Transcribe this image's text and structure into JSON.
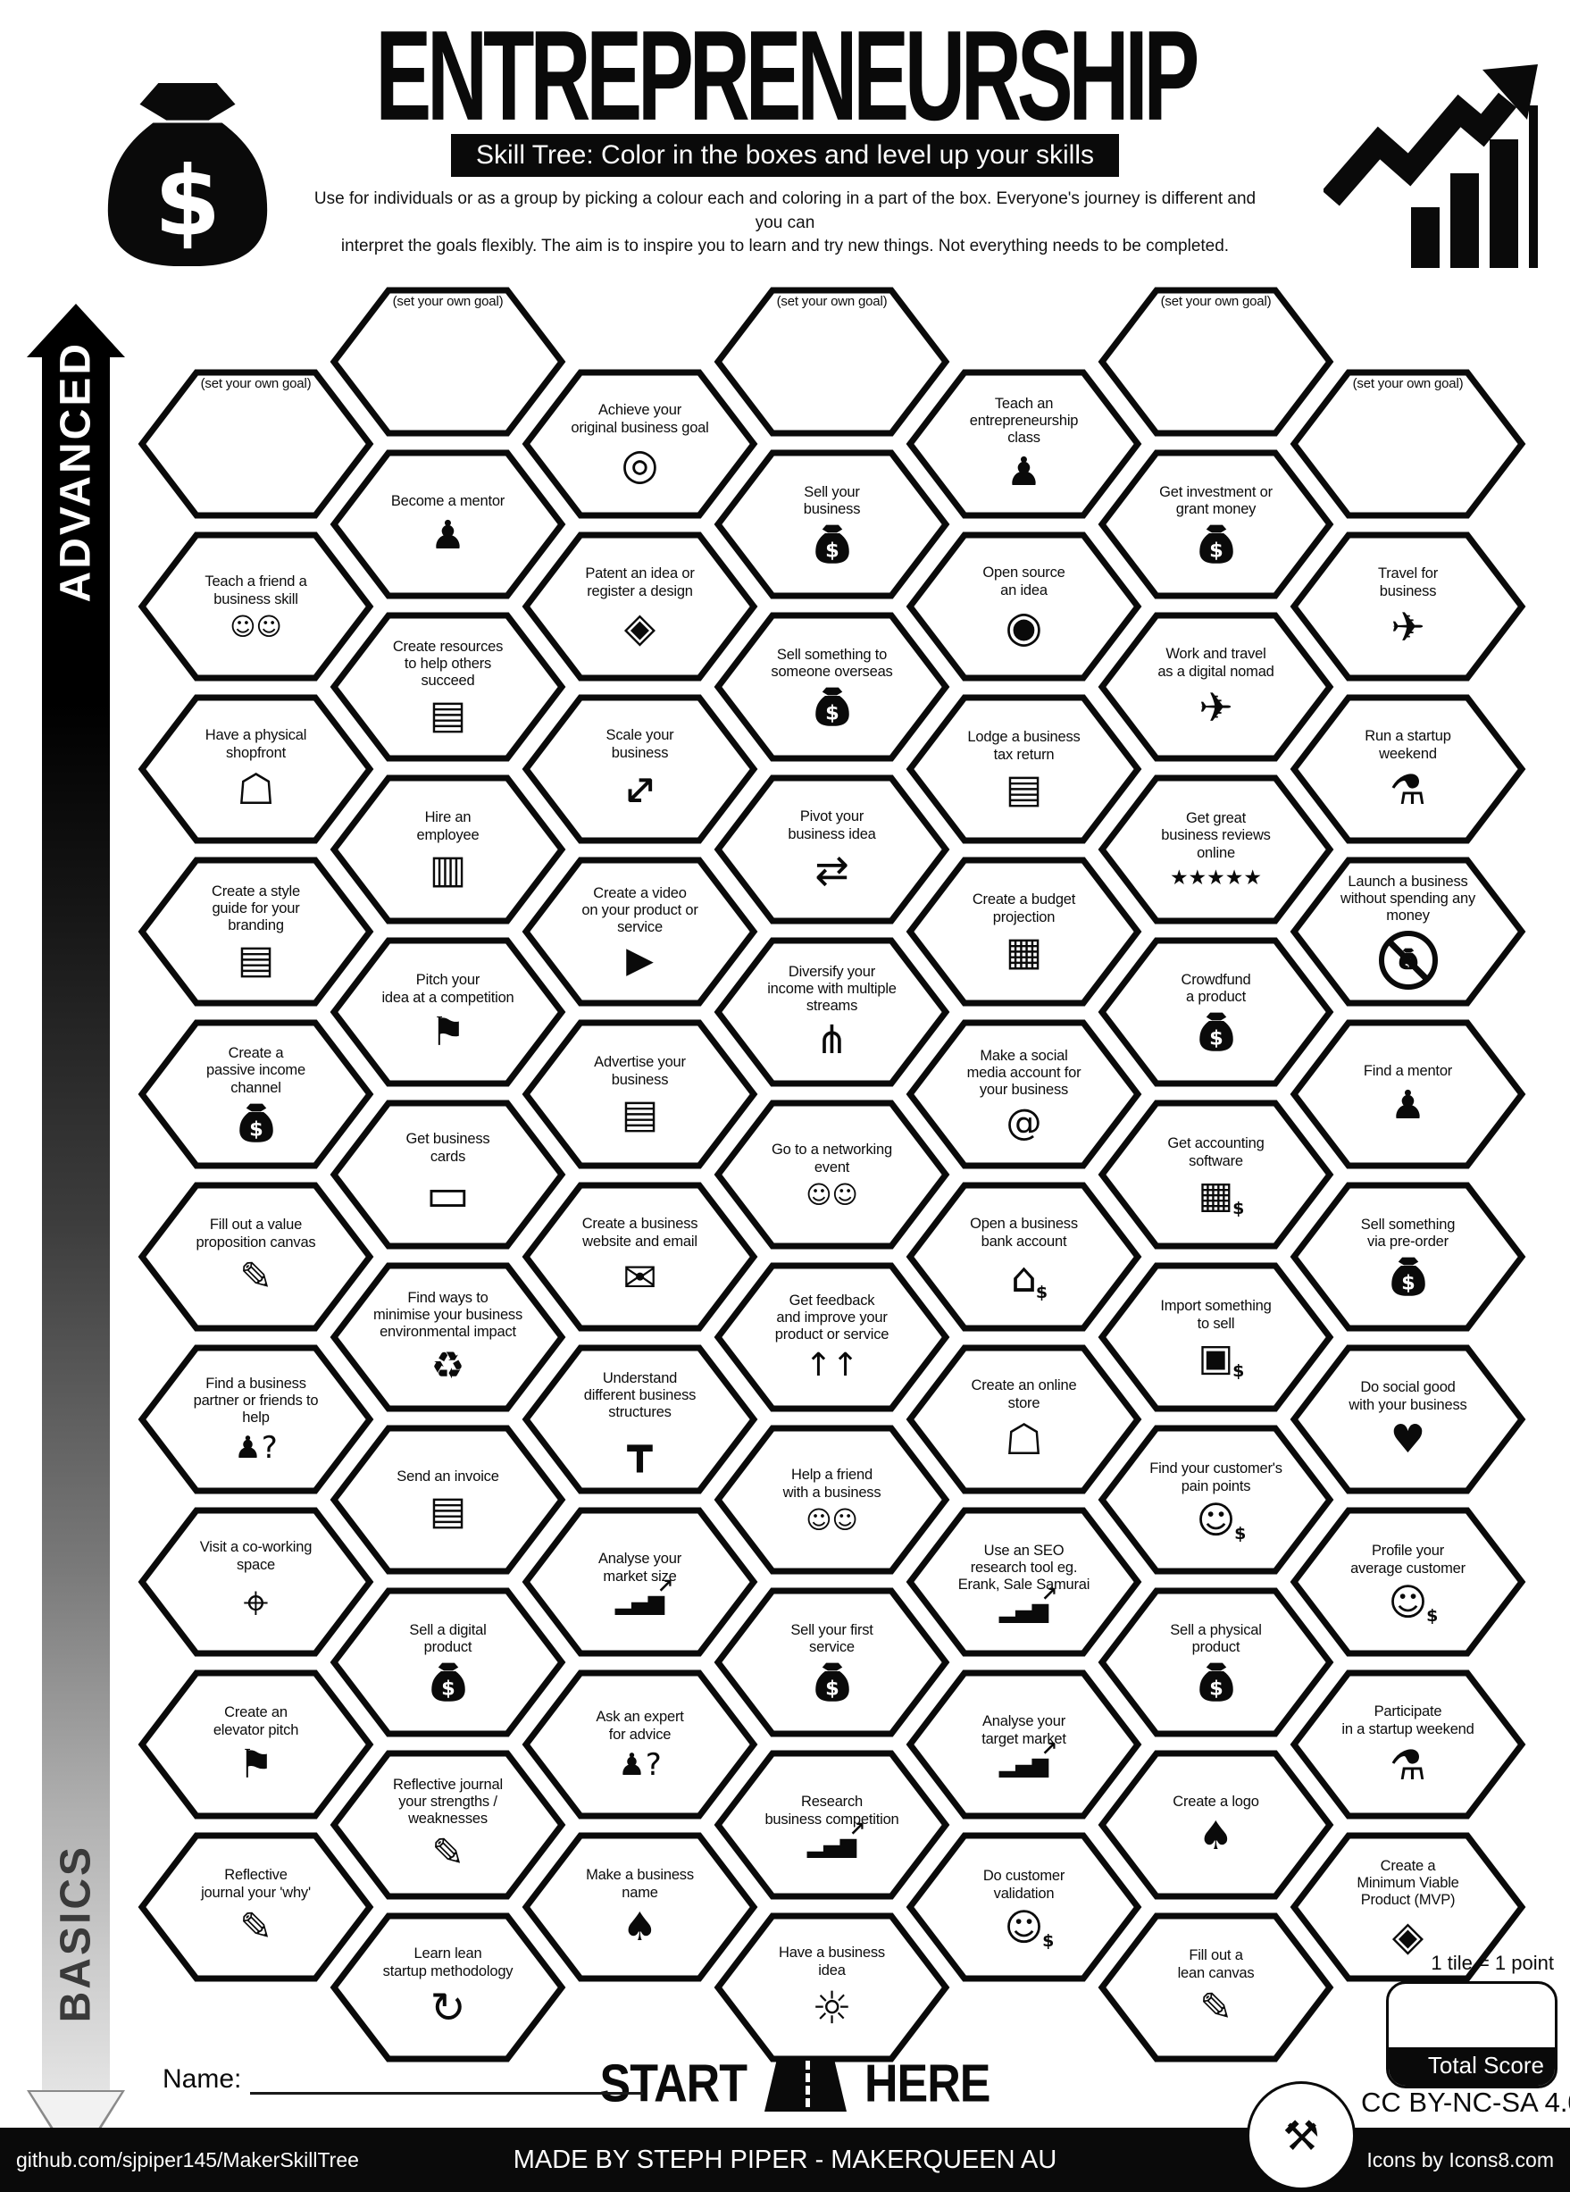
{
  "header": {
    "title": "ENTREPRENEURSHIP",
    "subtitle": "Skill Tree:  Color in the boxes and level up your skills",
    "description_line1": "Use for individuals or as a group by picking a colour each and coloring in a part of the box.  Everyone's journey is different and you can",
    "description_line2": "interpret the goals flexibly.  The aim is to inspire you to learn and try new things. Not everything needs to be completed.",
    "colors": {
      "ink": "#0a0a0a",
      "paper": "#ffffff"
    }
  },
  "axis": {
    "top_label": "ADVANCED",
    "bottom_label": "BASICS"
  },
  "grid": {
    "tiles": [
      {
        "col": 1,
        "row": 0,
        "label": "(set your own goal)",
        "icon": "goal"
      },
      {
        "col": 1,
        "row": 1,
        "label": "Teach a friend a\nbusiness skill",
        "icon": "two-people-laptop"
      },
      {
        "col": 1,
        "row": 2,
        "label": "Have a physical\nshopfront",
        "icon": "shopfront"
      },
      {
        "col": 1,
        "row": 3,
        "label": "Create a style\nguide for your\nbranding",
        "icon": "document"
      },
      {
        "col": 1,
        "row": 4,
        "label": "Create a\npassive income\nchannel",
        "icon": "money-bag"
      },
      {
        "col": 1,
        "row": 5,
        "label": "Fill out a value\nproposition canvas",
        "icon": "easel-canvas"
      },
      {
        "col": 1,
        "row": 6,
        "label": "Find a business\npartner or friends to\nhelp",
        "icon": "person-question"
      },
      {
        "col": 1,
        "row": 7,
        "label": "Visit a co-working\nspace",
        "icon": "location-pin"
      },
      {
        "col": 1,
        "row": 8,
        "label": "Create an\nelevator pitch",
        "icon": "lectern"
      },
      {
        "col": 1,
        "row": 9,
        "label": "Reflective\njournal your 'why'",
        "icon": "easel-canvas"
      },
      {
        "col": 2,
        "row": 0,
        "label": "(set your own goal)",
        "icon": "goal"
      },
      {
        "col": 2,
        "row": 1,
        "label": "Become a mentor",
        "icon": "presenter-whiteboard"
      },
      {
        "col": 2,
        "row": 2,
        "label": "Create resources\nto help others\nsucceed",
        "icon": "document"
      },
      {
        "col": 2,
        "row": 3,
        "label": "Hire an\nemployee",
        "icon": "id-badge"
      },
      {
        "col": 2,
        "row": 4,
        "label": "Pitch your\nidea at a competition",
        "icon": "lectern"
      },
      {
        "col": 2,
        "row": 5,
        "label": "Get business\ncards",
        "icon": "business-cards"
      },
      {
        "col": 2,
        "row": 6,
        "label": "Find ways to\nminimise your business\nenvironmental impact",
        "icon": "eco-footprint"
      },
      {
        "col": 2,
        "row": 7,
        "label": "Send an invoice",
        "icon": "invoice-document"
      },
      {
        "col": 2,
        "row": 8,
        "label": "Sell a digital\nproduct",
        "icon": "money-bag"
      },
      {
        "col": 2,
        "row": 9,
        "label": "Reflective journal\nyour strengths /\nweaknesses",
        "icon": "easel-canvas"
      },
      {
        "col": 2,
        "row": 10,
        "label": "Learn lean\nstartup methodology",
        "icon": "loop-arrow"
      },
      {
        "col": 3,
        "row": 0,
        "label": "Achieve your\noriginal business goal",
        "icon": "target-arrow"
      },
      {
        "col": 3,
        "row": 1,
        "label": "Patent an idea or\nregister a design",
        "icon": "box-certificate"
      },
      {
        "col": 3,
        "row": 2,
        "label": "Scale your\nbusiness",
        "icon": "scale-arrows"
      },
      {
        "col": 3,
        "row": 3,
        "label": "Create a video\non your product or\nservice",
        "icon": "video-player"
      },
      {
        "col": 3,
        "row": 4,
        "label": "Advertise your\nbusiness",
        "icon": "ad-flyers"
      },
      {
        "col": 3,
        "row": 5,
        "label": "Create a business\nwebsite and email",
        "icon": "envelope"
      },
      {
        "col": 3,
        "row": 6,
        "label": "Understand\ndifferent business\nstructures",
        "icon": "org-chart"
      },
      {
        "col": 3,
        "row": 7,
        "label": "Analyse your\nmarket size",
        "icon": "growth-chart"
      },
      {
        "col": 3,
        "row": 8,
        "label": "Ask an expert\nfor advice",
        "icon": "person-question"
      },
      {
        "col": 3,
        "row": 9,
        "label": "Make a business\nname",
        "icon": "pear"
      },
      {
        "col": 4,
        "row": 0,
        "label": "(set your own goal)",
        "icon": "goal"
      },
      {
        "col": 4,
        "row": 1,
        "label": "Sell your\nbusiness",
        "icon": "money-bag"
      },
      {
        "col": 4,
        "row": 2,
        "label": "Sell something to\nsomeone overseas",
        "icon": "money-bag"
      },
      {
        "col": 4,
        "row": 3,
        "label": "Pivot your\nbusiness idea",
        "icon": "pivot-boxes"
      },
      {
        "col": 4,
        "row": 4,
        "label": "Diversify your\nincome with multiple\nstreams",
        "icon": "branch-streams"
      },
      {
        "col": 4,
        "row": 5,
        "label": "Go to a networking\nevent",
        "icon": "two-people-laptop"
      },
      {
        "col": 4,
        "row": 6,
        "label": "Get feedback\nand improve your\nproduct or service",
        "icon": "arrows-up"
      },
      {
        "col": 4,
        "row": 7,
        "label": "Help a friend\nwith a business",
        "icon": "two-people-laptop"
      },
      {
        "col": 4,
        "row": 8,
        "label": "Sell your first\nservice",
        "icon": "money-bag"
      },
      {
        "col": 4,
        "row": 9,
        "label": "Research\nbusiness competition",
        "icon": "growth-chart"
      },
      {
        "col": 4,
        "row": 10,
        "label": "Have a business\nidea",
        "icon": "lightbulb"
      },
      {
        "col": 5,
        "row": 0,
        "label": "Teach an\nentrepreneurship\nclass",
        "icon": "presenter-whiteboard"
      },
      {
        "col": 5,
        "row": 1,
        "label": "Open source\nan idea",
        "icon": "open-source"
      },
      {
        "col": 5,
        "row": 2,
        "label": "Lodge a business\ntax return",
        "icon": "tax-form"
      },
      {
        "col": 5,
        "row": 3,
        "label": "Create a budget\nprojection",
        "icon": "budget-table"
      },
      {
        "col": 5,
        "row": 4,
        "label": "Make a social\nmedia account for\nyour business",
        "icon": "chat-bubbles"
      },
      {
        "col": 5,
        "row": 5,
        "label": "Open a business\nbank account",
        "icon": "bank-dollar"
      },
      {
        "col": 5,
        "row": 6,
        "label": "Create an online\nstore",
        "icon": "shopfront"
      },
      {
        "col": 5,
        "row": 7,
        "label": "Use an SEO\nresearch tool eg.\nErank, Sale Samurai",
        "icon": "growth-chart"
      },
      {
        "col": 5,
        "row": 8,
        "label": "Analyse your\ntarget market",
        "icon": "growth-chart"
      },
      {
        "col": 5,
        "row": 9,
        "label": "Do customer\nvalidation",
        "icon": "face-banknote"
      },
      {
        "col": 6,
        "row": 0,
        "label": "(set your own goal)",
        "icon": "goal"
      },
      {
        "col": 6,
        "row": 1,
        "label": "Get investment or\ngrant money",
        "icon": "money-bag"
      },
      {
        "col": 6,
        "row": 2,
        "label": "Work and travel\nas a digital nomad",
        "icon": "airplane"
      },
      {
        "col": 6,
        "row": 3,
        "label": "Get great\nbusiness reviews\nonline",
        "icon": "five-stars"
      },
      {
        "col": 6,
        "row": 4,
        "label": "Crowdfund\na product",
        "icon": "money-bag"
      },
      {
        "col": 6,
        "row": 5,
        "label": "Get accounting\nsoftware",
        "icon": "calculator-dollar"
      },
      {
        "col": 6,
        "row": 6,
        "label": "Import something\nto sell",
        "icon": "import-box-dollar"
      },
      {
        "col": 6,
        "row": 7,
        "label": "Find your customer's\npain points",
        "icon": "face-banknote"
      },
      {
        "col": 6,
        "row": 8,
        "label": "Sell a physical\nproduct",
        "icon": "money-bag"
      },
      {
        "col": 6,
        "row": 9,
        "label": "Create a logo",
        "icon": "pear"
      },
      {
        "col": 6,
        "row": 10,
        "label": "Fill out a\nlean canvas",
        "icon": "easel-canvas"
      },
      {
        "col": 7,
        "row": 0,
        "label": "(set your own goal)",
        "icon": "goal"
      },
      {
        "col": 7,
        "row": 1,
        "label": "Travel for\nbusiness",
        "icon": "airplane"
      },
      {
        "col": 7,
        "row": 2,
        "label": "Run a startup\nweekend",
        "icon": "flask-people"
      },
      {
        "col": 7,
        "row": 3,
        "label": "Launch a business\nwithout spending any\nmoney",
        "icon": "money-bag-crossed"
      },
      {
        "col": 7,
        "row": 4,
        "label": "Find a mentor",
        "icon": "presenter-whiteboard"
      },
      {
        "col": 7,
        "row": 5,
        "label": "Sell something\nvia pre-order",
        "icon": "money-bag"
      },
      {
        "col": 7,
        "row": 6,
        "label": "Do social good\nwith your business",
        "icon": "hand-heart"
      },
      {
        "col": 7,
        "row": 7,
        "label": "Profile your\naverage customer",
        "icon": "face-banknote"
      },
      {
        "col": 7,
        "row": 8,
        "label": "Participate\nin a startup weekend",
        "icon": "flask-people"
      },
      {
        "col": 7,
        "row": 9,
        "label": "Create a\nMinimum Viable\nProduct (MVP)",
        "icon": "box-certificate"
      }
    ]
  },
  "bottom": {
    "start_left": "START",
    "start_right": "HERE",
    "tile_point_note": "1 tile = 1 point",
    "total_score_label": "Total Score",
    "name_label": "Name:",
    "license": "CC BY-NC-SA 4.0"
  },
  "footer": {
    "left": "github.com/sjpiper145/MakerSkillTree",
    "center": "MADE BY STEPH PIPER  -  MAKERQUEEN AU",
    "right": "Icons by Icons8.com"
  }
}
